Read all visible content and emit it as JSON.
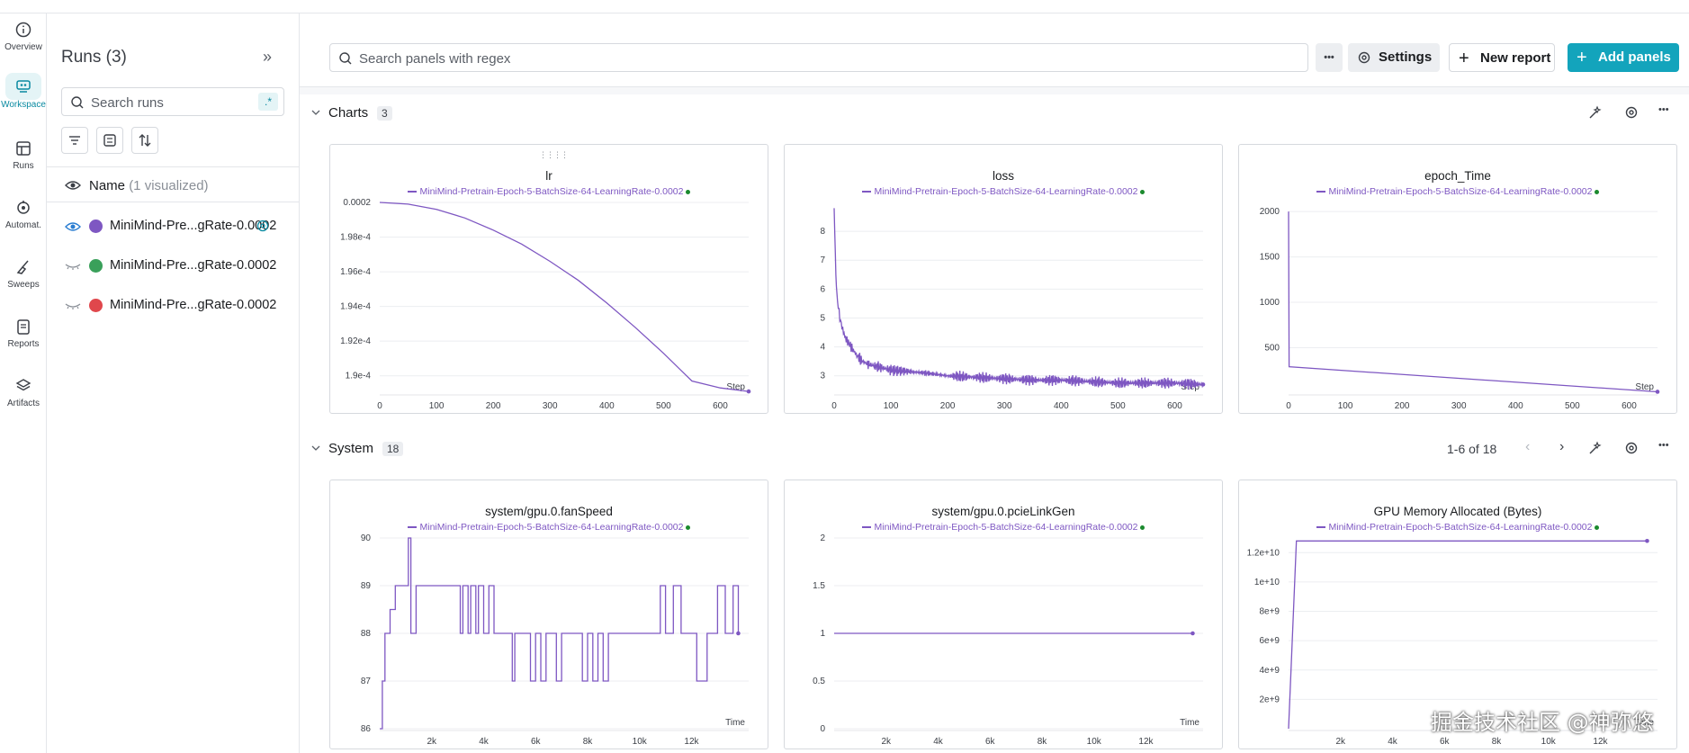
{
  "nav": {
    "items": [
      {
        "label": "Overview",
        "icon": "info-icon"
      },
      {
        "label": "Workspace",
        "icon": "workspace-icon"
      },
      {
        "label": "Runs",
        "icon": "table-icon"
      },
      {
        "label": "Automat.",
        "icon": "automation-icon"
      },
      {
        "label": "Sweeps",
        "icon": "broom-icon"
      },
      {
        "label": "Reports",
        "icon": "report-icon"
      },
      {
        "label": "Artifacts",
        "icon": "layers-icon"
      }
    ]
  },
  "runs": {
    "title": "Runs (3)",
    "search_placeholder": "Search runs",
    "regex_label": ".*",
    "header_name": "Name",
    "header_visualized": "(1 visualized)",
    "items": [
      {
        "name": "MiniMind-Pre...gRate-0.0002",
        "color": "#7e57c2"
      },
      {
        "name": "MiniMind-Pre...gRate-0.0002",
        "color": "#3aa05a"
      },
      {
        "name": "MiniMind-Pre...gRate-0.0002",
        "color": "#e0474c"
      }
    ]
  },
  "toolbar": {
    "search_placeholder": "Search panels with regex",
    "more_label": "•••",
    "settings_label": "Settings",
    "new_report_label": "New report",
    "add_panels_label": "Add panels"
  },
  "sections": {
    "charts": {
      "title": "Charts",
      "count": "3"
    },
    "system": {
      "title": "System",
      "count": "18",
      "pagination": "1-6 of 18"
    }
  },
  "legend": "MiniMind-Pretrain-Epoch-5-BatchSize-64-LearningRate-0.0002",
  "colors": {
    "accent": "#13a4bc",
    "series": "#7e57c2"
  },
  "chart_data": [
    {
      "id": "lr",
      "type": "line",
      "title": "lr",
      "xlabel": "Step",
      "xticks": [
        "0",
        "100",
        "200",
        "300",
        "400",
        "500",
        "600"
      ],
      "yticks": [
        "0.0002",
        "1.98e-4",
        "1.96e-4",
        "1.94e-4",
        "1.92e-4",
        "1.9e-4"
      ],
      "xlim": [
        0,
        650
      ],
      "ylim": [
        0.000189,
        0.0002
      ],
      "series": [
        {
          "name": "MiniMind-Pretrain-Epoch-5-BatchSize-64-LearningRate-0.0002",
          "x": [
            0,
            50,
            100,
            150,
            200,
            250,
            300,
            350,
            400,
            450,
            500,
            550,
            600,
            650
          ],
          "y": [
            0.0002,
            0.0001999,
            0.0001996,
            0.0001991,
            0.0001984,
            0.0001976,
            0.0001966,
            0.0001955,
            0.0001942,
            0.0001928,
            0.0001913,
            0.0001897,
            0.0001893,
            0.0001891
          ]
        }
      ]
    },
    {
      "id": "loss",
      "type": "line",
      "title": "loss",
      "xlabel": "Step",
      "xticks": [
        "0",
        "100",
        "200",
        "300",
        "400",
        "500",
        "600"
      ],
      "yticks": [
        "8",
        "7",
        "6",
        "5",
        "4",
        "3"
      ],
      "xlim": [
        0,
        650
      ],
      "ylim": [
        2.4,
        9.0
      ],
      "series": [
        {
          "name": "MiniMind-Pretrain-Epoch-5-BatchSize-64-LearningRate-0.0002",
          "x": [
            0,
            3,
            6,
            10,
            15,
            20,
            30,
            40,
            50,
            60,
            80,
            100,
            130,
            160,
            200,
            250,
            300,
            350,
            400,
            450,
            500,
            550,
            600,
            650
          ],
          "y": [
            8.8,
            6.5,
            5.6,
            5.0,
            4.6,
            4.3,
            4.0,
            3.7,
            3.5,
            3.4,
            3.3,
            3.2,
            3.15,
            3.1,
            3.0,
            2.95,
            2.9,
            2.85,
            2.85,
            2.8,
            2.75,
            2.75,
            2.75,
            2.7
          ]
        }
      ]
    },
    {
      "id": "epoch_time",
      "type": "line",
      "title": "epoch_Time",
      "xlabel": "Step",
      "xticks": [
        "0",
        "100",
        "200",
        "300",
        "400",
        "500",
        "600"
      ],
      "yticks": [
        "2000",
        "1500",
        "1000",
        "500"
      ],
      "xlim": [
        0,
        650
      ],
      "ylim": [
        0,
        2100
      ],
      "series": [
        {
          "name": "MiniMind-Pretrain-Epoch-5-BatchSize-64-LearningRate-0.0002",
          "x": [
            0,
            1,
            650
          ],
          "y": [
            2000,
            290,
            15
          ]
        }
      ]
    },
    {
      "id": "fanspeed",
      "type": "line",
      "title": "system/gpu.0.fanSpeed",
      "xlabel": "Time",
      "xticks": [
        "2k",
        "4k",
        "6k",
        "8k",
        "10k",
        "12k"
      ],
      "yticks": [
        "90",
        "89",
        "88",
        "87",
        "86"
      ],
      "xlim": [
        0,
        14200
      ],
      "ylim": [
        86,
        90
      ],
      "series": [
        {
          "name": "MiniMind-Pretrain-Epoch-5-BatchSize-64-LearningRate-0.0002",
          "x": [
            0,
            100,
            200,
            400,
            600,
            800,
            1000,
            1100,
            1200,
            1400,
            2000,
            3000,
            3100,
            3200,
            3400,
            3500,
            3700,
            3800,
            4000,
            4200,
            4400,
            5000,
            5100,
            5200,
            5600,
            5800,
            6000,
            6200,
            6400,
            6600,
            6800,
            7000,
            7200,
            7400,
            7800,
            8000,
            8200,
            8400,
            8600,
            8800,
            9000,
            9400,
            10000,
            10500,
            10800,
            11000,
            11300,
            11600,
            12000,
            12200,
            12600,
            13000,
            13300,
            13600,
            13800
          ],
          "y": [
            86,
            87,
            88,
            88.5,
            89,
            89,
            89,
            90,
            88,
            89,
            89,
            89,
            88,
            89,
            88,
            89,
            88,
            89,
            88,
            89,
            88,
            88,
            87,
            88,
            88,
            87,
            88,
            87,
            88,
            88,
            87,
            88,
            88,
            88,
            87,
            88,
            87,
            88,
            87,
            88,
            88,
            88,
            88,
            88,
            89,
            88,
            89,
            88,
            88,
            87,
            88,
            89,
            88,
            89,
            88
          ]
        }
      ]
    },
    {
      "id": "pcielinkgen",
      "type": "line",
      "title": "system/gpu.0.pcieLinkGen",
      "xlabel": "Time",
      "xticks": [
        "2k",
        "4k",
        "6k",
        "8k",
        "10k",
        "12k"
      ],
      "yticks": [
        "2",
        "1.5",
        "1",
        "0.5",
        "0"
      ],
      "xlim": [
        0,
        14200
      ],
      "ylim": [
        0,
        2
      ],
      "series": [
        {
          "name": "MiniMind-Pretrain-Epoch-5-BatchSize-64-LearningRate-0.0002",
          "x": [
            0,
            13800
          ],
          "y": [
            1,
            1
          ]
        }
      ]
    },
    {
      "id": "gpumem",
      "type": "line",
      "title": "GPU Memory Allocated (Bytes)",
      "xlabel": "Time",
      "xticks": [
        "2k",
        "4k",
        "6k",
        "8k",
        "10k",
        "12k"
      ],
      "yticks": [
        "1.2e+10",
        "1e+10",
        "8e+9",
        "6e+9",
        "4e+9",
        "2e+9"
      ],
      "xlim": [
        0,
        14200
      ],
      "ylim": [
        0,
        13000000000
      ],
      "series": [
        {
          "name": "MiniMind-Pretrain-Epoch-5-BatchSize-64-LearningRate-0.0002",
          "x": [
            0,
            300,
            13800
          ],
          "y": [
            0,
            12800000000,
            12800000000
          ]
        }
      ]
    }
  ]
}
